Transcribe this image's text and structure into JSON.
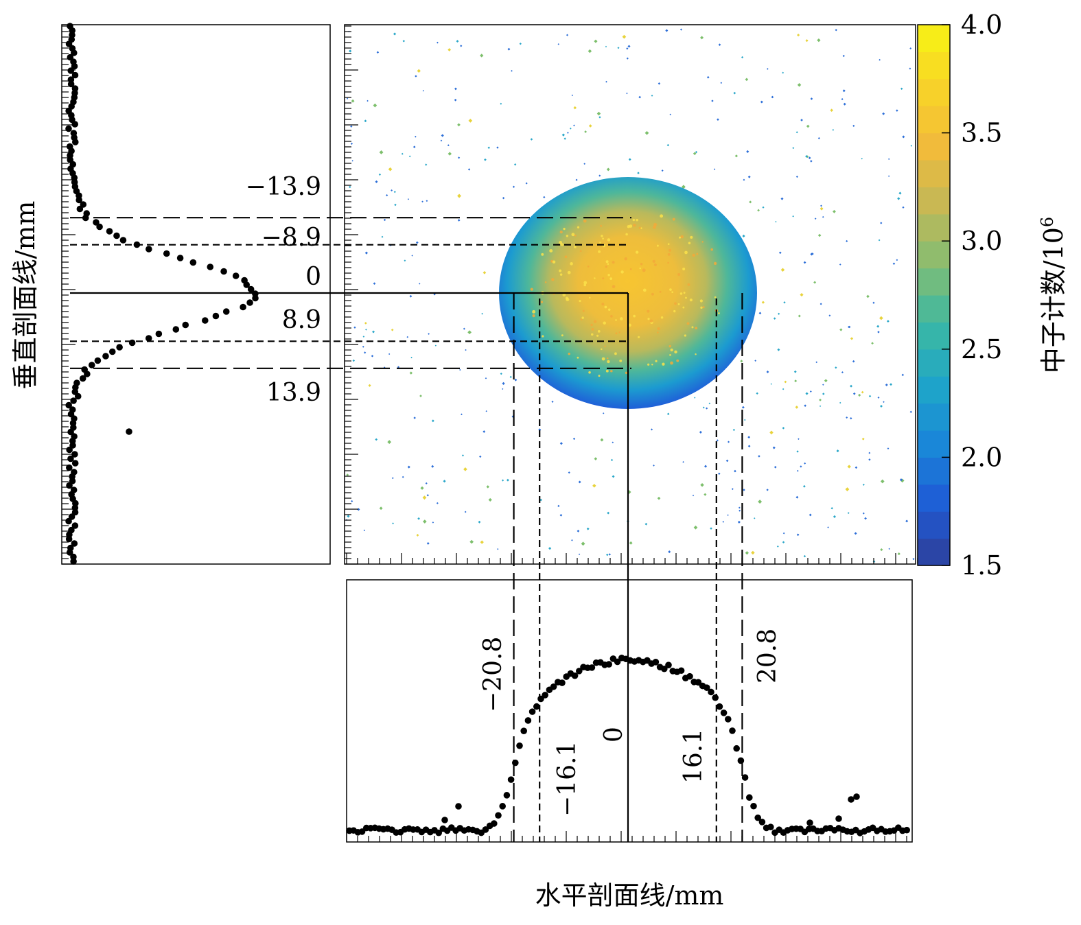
{
  "chart_data": [
    {
      "type": "heatmap",
      "name": "neutron-image",
      "colorbar": {
        "label": "中子计数/10",
        "label_sup": "6",
        "min": 1.5,
        "max": 4.0,
        "ticks": [
          "1.5",
          "2.0",
          "2.5",
          "3.0",
          "3.5",
          "4.0"
        ],
        "colors": [
          "#2e3f98",
          "#1f5bd6",
          "#1a86d8",
          "#1ea5c9",
          "#3bb8a4",
          "#84bd72",
          "#c6b855",
          "#f2bb3a",
          "#f8d428",
          "#f7f413"
        ]
      },
      "spot": {
        "center_h_mm": 0,
        "center_v_mm": 0,
        "radius_h_mm": 20.8,
        "radius_v_mm": 13.9
      }
    },
    {
      "type": "scatter",
      "name": "vertical-profile",
      "ylabel": "垂直剖面线/mm",
      "markers": [
        {
          "value": -13.9,
          "label": "−13.9",
          "style": "long-dash"
        },
        {
          "value": -8.9,
          "label": "−8.9",
          "style": "short-dash"
        },
        {
          "value": 0,
          "label": "0",
          "style": "solid"
        },
        {
          "value": 8.9,
          "label": "8.9",
          "style": "short-dash"
        },
        {
          "value": 13.9,
          "label": "13.9",
          "style": "long-dash"
        }
      ]
    },
    {
      "type": "scatter",
      "name": "horizontal-profile",
      "xlabel": "水平剖面线/mm",
      "markers": [
        {
          "value": -20.8,
          "label": "−20.8",
          "style": "long-dash"
        },
        {
          "value": -16.1,
          "label": "−16.1",
          "style": "short-dash"
        },
        {
          "value": 0,
          "label": "0",
          "style": "solid"
        },
        {
          "value": 16.1,
          "label": "16.1",
          "style": "short-dash"
        },
        {
          "value": 20.8,
          "label": "20.8",
          "style": "long-dash"
        }
      ]
    }
  ]
}
